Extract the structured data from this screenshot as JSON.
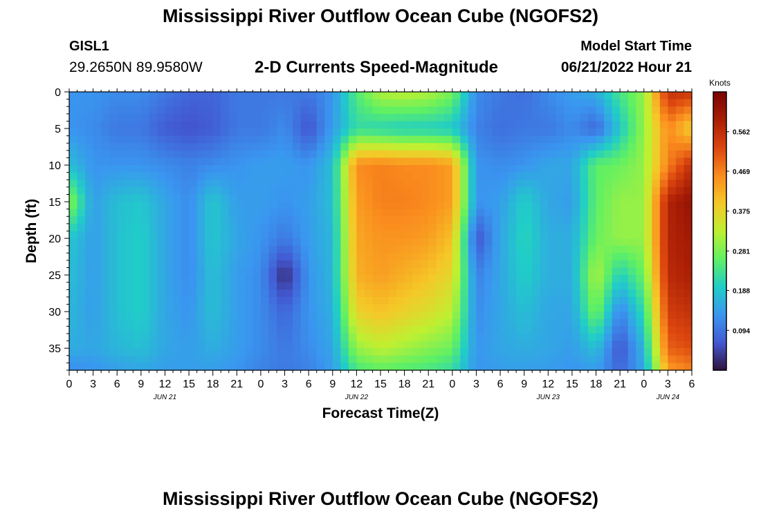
{
  "page": {
    "title_top": "Mississippi River Outflow Ocean Cube (NGOFS2)",
    "title_bottom": "Mississippi River Outflow Ocean Cube (NGOFS2)",
    "station_id": "GISL1",
    "station_coords": "29.2650N  89.9580W",
    "subtitle": "2-D Currents Speed-Magnitude",
    "model_start_label": "Model Start Time",
    "model_start_value": "06/21/2022 Hour 21"
  },
  "chart_data": {
    "type": "heatmap",
    "title": "2-D Currents Speed-Magnitude",
    "xlabel": "Forecast Time(Z)",
    "ylabel": "Depth (ft)",
    "x_range_hours": [
      0,
      78
    ],
    "x_tick_labels": [
      "0",
      "3",
      "6",
      "9",
      "12",
      "15",
      "18",
      "21",
      "0",
      "3",
      "6",
      "9",
      "12",
      "15",
      "18",
      "21",
      "0",
      "3",
      "6",
      "9",
      "12",
      "15",
      "18",
      "21",
      "0",
      "3",
      "6"
    ],
    "date_labels": [
      {
        "label": "JUN 21",
        "at_hour": 12
      },
      {
        "label": "JUN 22",
        "at_hour": 36
      },
      {
        "label": "JUN 23",
        "at_hour": 60
      },
      {
        "label": "JUN 24",
        "at_hour": 75
      }
    ],
    "y_range_ft": [
      0,
      38
    ],
    "y_inverted": true,
    "y_ticks": [
      0,
      5,
      10,
      15,
      20,
      25,
      30,
      35
    ],
    "colorbar": {
      "unit": "Knots",
      "min": 0.0,
      "max": 0.656,
      "tick_labels": [
        "0.094",
        "0.188",
        "0.281",
        "0.375",
        "0.469",
        "0.562"
      ],
      "tick_values": [
        0.094,
        0.188,
        0.281,
        0.375,
        0.469,
        0.562
      ],
      "colormap": "turbo"
    },
    "grid_note": "speed (knots) sampled at forecast hour columns x depth rows",
    "x_hours": [
      0,
      3,
      6,
      9,
      12,
      15,
      18,
      21,
      24,
      27,
      30,
      33,
      36,
      39,
      42,
      45,
      48,
      51,
      54,
      57,
      60,
      63,
      66,
      69,
      72,
      75,
      78
    ],
    "depths_ft": [
      0,
      5,
      10,
      15,
      20,
      25,
      30,
      35,
      38
    ],
    "speed_knots": [
      [
        0.13,
        0.13,
        0.12,
        0.12,
        0.1,
        0.08,
        0.08,
        0.1,
        0.1,
        0.1,
        0.1,
        0.13,
        0.25,
        0.32,
        0.33,
        0.32,
        0.28,
        0.12,
        0.1,
        0.09,
        0.12,
        0.14,
        0.16,
        0.24,
        0.3,
        0.56,
        0.55
      ],
      [
        0.13,
        0.12,
        0.1,
        0.1,
        0.07,
        0.06,
        0.07,
        0.1,
        0.1,
        0.12,
        0.06,
        0.14,
        0.22,
        0.21,
        0.2,
        0.2,
        0.19,
        0.11,
        0.09,
        0.1,
        0.1,
        0.12,
        0.08,
        0.19,
        0.3,
        0.46,
        0.38
      ],
      [
        0.18,
        0.13,
        0.13,
        0.13,
        0.12,
        0.11,
        0.12,
        0.13,
        0.14,
        0.14,
        0.13,
        0.18,
        0.46,
        0.47,
        0.46,
        0.46,
        0.44,
        0.13,
        0.12,
        0.13,
        0.15,
        0.15,
        0.26,
        0.27,
        0.3,
        0.47,
        0.56
      ],
      [
        0.3,
        0.14,
        0.18,
        0.19,
        0.15,
        0.12,
        0.19,
        0.14,
        0.14,
        0.13,
        0.14,
        0.18,
        0.44,
        0.47,
        0.47,
        0.46,
        0.44,
        0.13,
        0.14,
        0.2,
        0.15,
        0.14,
        0.26,
        0.3,
        0.3,
        0.58,
        0.62
      ],
      [
        0.19,
        0.14,
        0.18,
        0.2,
        0.15,
        0.12,
        0.19,
        0.15,
        0.13,
        0.1,
        0.14,
        0.17,
        0.43,
        0.45,
        0.45,
        0.44,
        0.4,
        0.06,
        0.15,
        0.21,
        0.16,
        0.16,
        0.27,
        0.3,
        0.3,
        0.58,
        0.6
      ],
      [
        0.18,
        0.14,
        0.18,
        0.2,
        0.15,
        0.12,
        0.18,
        0.14,
        0.12,
        0.02,
        0.13,
        0.17,
        0.42,
        0.44,
        0.42,
        0.4,
        0.37,
        0.11,
        0.15,
        0.2,
        0.16,
        0.16,
        0.32,
        0.2,
        0.27,
        0.57,
        0.59
      ],
      [
        0.17,
        0.14,
        0.18,
        0.2,
        0.15,
        0.13,
        0.18,
        0.14,
        0.12,
        0.08,
        0.13,
        0.16,
        0.38,
        0.4,
        0.38,
        0.36,
        0.33,
        0.12,
        0.15,
        0.18,
        0.15,
        0.15,
        0.28,
        0.11,
        0.22,
        0.54,
        0.56
      ],
      [
        0.16,
        0.15,
        0.17,
        0.18,
        0.15,
        0.14,
        0.16,
        0.14,
        0.12,
        0.1,
        0.12,
        0.15,
        0.3,
        0.33,
        0.31,
        0.29,
        0.27,
        0.13,
        0.15,
        0.16,
        0.15,
        0.14,
        0.18,
        0.06,
        0.17,
        0.5,
        0.52
      ],
      [
        0.12,
        0.13,
        0.14,
        0.15,
        0.14,
        0.14,
        0.14,
        0.13,
        0.11,
        0.1,
        0.11,
        0.14,
        0.24,
        0.26,
        0.25,
        0.24,
        0.22,
        0.13,
        0.14,
        0.14,
        0.14,
        0.13,
        0.14,
        0.08,
        0.15,
        0.44,
        0.47
      ]
    ]
  }
}
